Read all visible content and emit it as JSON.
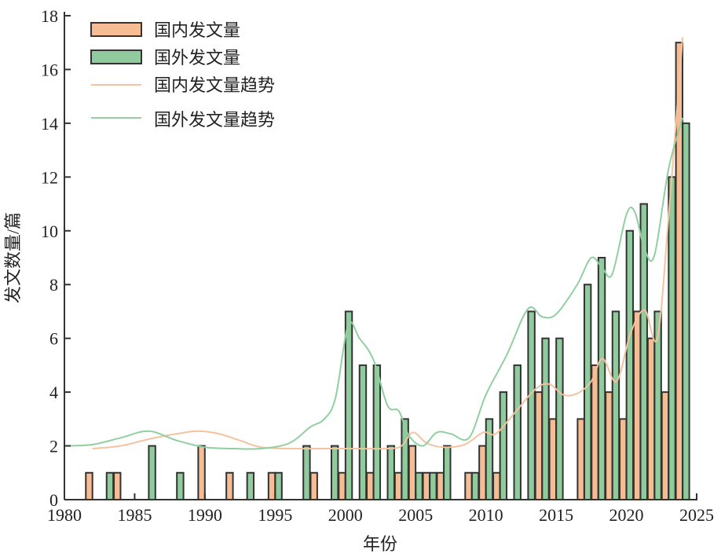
{
  "chart_data": {
    "type": "bar",
    "title": "",
    "xlabel": "年份",
    "ylabel": "发文数量/篇",
    "xlim": [
      1980,
      2025
    ],
    "ylim": [
      0,
      18
    ],
    "xticks": [
      1980,
      1985,
      1990,
      1995,
      2000,
      2005,
      2010,
      2015,
      2020,
      2025
    ],
    "yticks": [
      0,
      2,
      4,
      6,
      8,
      10,
      12,
      14,
      16,
      18
    ],
    "grid": false,
    "legend_position": "top-left",
    "years": [
      1982,
      1983,
      1984,
      1985,
      1986,
      1987,
      1988,
      1989,
      1990,
      1991,
      1992,
      1993,
      1994,
      1995,
      1996,
      1997,
      1998,
      1999,
      2000,
      2001,
      2002,
      2003,
      2004,
      2005,
      2006,
      2007,
      2008,
      2009,
      2010,
      2011,
      2012,
      2013,
      2014,
      2015,
      2016,
      2017,
      2018,
      2019,
      2020,
      2021,
      2022,
      2023,
      2024
    ],
    "series": [
      {
        "name": "国内发文量",
        "kind": "bar",
        "color": "#f6bc93",
        "values": [
          1,
          0,
          1,
          0,
          0,
          0,
          0,
          0,
          2,
          0,
          1,
          0,
          0,
          1,
          0,
          0,
          1,
          0,
          1,
          0,
          1,
          0,
          1,
          2,
          1,
          1,
          0,
          1,
          2,
          1,
          0,
          0,
          4,
          3,
          0,
          3,
          5,
          4,
          3,
          7,
          6,
          4,
          17
        ]
      },
      {
        "name": "国外发文量",
        "kind": "bar",
        "color": "#8fcb9c",
        "values": [
          0,
          1,
          0,
          0,
          2,
          0,
          1,
          0,
          0,
          0,
          0,
          1,
          0,
          1,
          0,
          2,
          0,
          2,
          7,
          5,
          5,
          2,
          3,
          1,
          1,
          2,
          0,
          1,
          3,
          4,
          5,
          7,
          6,
          6,
          0,
          8,
          9,
          7,
          10,
          11,
          7,
          12,
          14
        ]
      },
      {
        "name": "国内发文量趋势",
        "kind": "line",
        "color": "#f4c29f",
        "x": [
          1982,
          1984,
          1986,
          1988,
          1989.5,
          1991,
          1992.5,
          1994,
          1996,
          2000,
          2003,
          2004,
          2004.8,
          2005.8,
          2007,
          2008.5,
          2009.8,
          2010.7,
          2012,
          2013.5,
          2014.5,
          2015.5,
          2016.5,
          2017.5,
          2018.3,
          2019.3,
          2020.3,
          2021.3,
          2022.2,
          2023,
          2023.6,
          2024
        ],
        "values": [
          1.9,
          2.0,
          2.25,
          2.45,
          2.55,
          2.45,
          2.2,
          1.95,
          1.9,
          1.9,
          1.9,
          2.0,
          2.5,
          2.1,
          1.95,
          2.05,
          2.5,
          2.45,
          3.2,
          4.1,
          4.3,
          3.9,
          3.95,
          4.4,
          5.25,
          4.4,
          6.2,
          7.05,
          6.0,
          10.5,
          14.5,
          17.2
        ]
      },
      {
        "name": "国外发文量趋势",
        "kind": "line",
        "color": "#91cfa0",
        "x": [
          1980,
          1982,
          1984,
          1986,
          1988,
          1990,
          1992,
          1994,
          1996,
          1997.5,
          1998.5,
          1999.3,
          2000.2,
          2001,
          2002,
          2003,
          2003.8,
          2004.5,
          2005.5,
          2006.5,
          2007.5,
          2008.8,
          2010,
          2011.5,
          2013,
          2014,
          2015,
          2016.5,
          2017.5,
          2018.3,
          2019,
          2020,
          2020.6,
          2021.3,
          2022,
          2023,
          2024
        ],
        "values": [
          2.0,
          2.05,
          2.3,
          2.55,
          2.2,
          1.95,
          1.9,
          1.9,
          2.1,
          2.7,
          3.0,
          3.8,
          6.5,
          6.0,
          5.2,
          3.5,
          3.3,
          2.4,
          2.0,
          2.5,
          2.45,
          2.3,
          3.9,
          5.4,
          7.1,
          6.8,
          6.9,
          8.0,
          9.0,
          8.6,
          8.4,
          10.6,
          10.7,
          9.3,
          9.1,
          12.3,
          14.2
        ]
      }
    ]
  }
}
